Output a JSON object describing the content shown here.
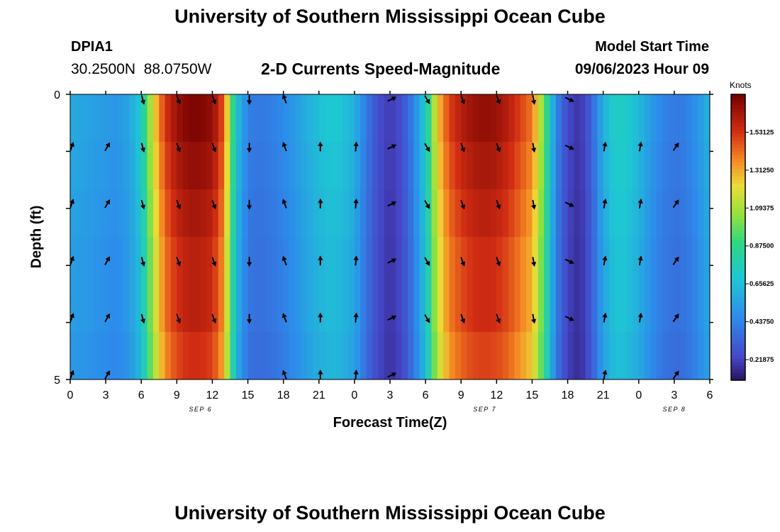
{
  "header": {
    "title": "University of Southern Mississippi Ocean Cube",
    "station": "DPIA1",
    "coords": "30.2500N  88.0750W",
    "subtitle": "2-D Currents Speed-Magnitude",
    "model_start_label": "Model Start Time",
    "model_start_value": "09/06/2023 Hour 09"
  },
  "footer": {
    "title": "University of Southern Mississippi Ocean Cube"
  },
  "chart_data": {
    "type": "heatmap",
    "title": "2-D Currents Speed-Magnitude",
    "xlabel": "Forecast Time(Z)",
    "ylabel": "Depth (ft)",
    "y_ticks": [
      "0",
      "5"
    ],
    "ylim": [
      0,
      5
    ],
    "xlim_hours": [
      0,
      54
    ],
    "x_tick_labels": [
      "0",
      "3",
      "6",
      "9",
      "12",
      "15",
      "18",
      "21",
      "0",
      "3",
      "6",
      "9",
      "12",
      "15",
      "18",
      "21",
      "0",
      "3",
      "6"
    ],
    "date_labels": [
      {
        "text": "SEP 6",
        "hour": 11
      },
      {
        "text": "SEP 7",
        "hour": 35
      },
      {
        "text": "SEP 8",
        "hour": 51
      }
    ],
    "colorbar": {
      "unit": "Knots",
      "min": 0.1,
      "max": 1.75,
      "tick_labels": [
        "1.53125",
        "1.31250",
        "1.09375",
        "0.87500",
        "0.65625",
        "0.43750",
        "0.21875"
      ],
      "tick_values": [
        1.53125,
        1.3125,
        1.09375,
        0.875,
        0.65625,
        0.4375,
        0.21875
      ]
    },
    "speed_profile": {
      "hours": [
        0,
        1,
        2,
        3,
        4,
        5,
        6,
        7,
        8,
        9,
        10,
        11,
        12,
        13,
        14,
        15,
        16,
        17,
        18,
        19,
        20,
        21,
        22,
        23,
        24,
        25,
        26,
        27,
        28,
        29,
        30,
        31,
        32,
        33,
        34,
        35,
        36,
        37,
        38,
        39,
        40,
        41,
        42,
        43,
        44,
        45,
        46,
        47,
        48,
        49,
        50,
        51,
        52,
        53,
        54
      ],
      "knots": [
        0.58,
        0.56,
        0.54,
        0.52,
        0.5,
        0.56,
        0.72,
        1.2,
        1.52,
        1.66,
        1.72,
        1.72,
        1.68,
        1.45,
        0.68,
        0.42,
        0.4,
        0.42,
        0.46,
        0.52,
        0.6,
        0.66,
        0.7,
        0.68,
        0.6,
        0.4,
        0.26,
        0.2,
        0.26,
        0.44,
        0.72,
        1.25,
        1.5,
        1.6,
        1.66,
        1.68,
        1.66,
        1.6,
        1.5,
        1.4,
        1.0,
        0.45,
        0.24,
        0.18,
        0.32,
        0.6,
        0.74,
        0.72,
        0.64,
        0.52,
        0.44,
        0.4,
        0.42,
        0.5,
        0.62
      ]
    },
    "depth_levels": [
      0,
      1,
      2,
      3,
      4,
      5
    ],
    "arrow_times_hours": [
      0,
      3,
      6,
      9,
      12,
      15,
      18,
      21,
      24,
      27,
      30,
      33,
      36,
      39,
      42,
      45,
      48,
      51
    ],
    "arrow_direction_deg": [
      20,
      30,
      165,
      160,
      160,
      180,
      340,
      0,
      5,
      65,
      150,
      160,
      160,
      170,
      115,
      10,
      10,
      35
    ],
    "missing_arrows": [
      {
        "hour": 0,
        "depth": 0
      },
      {
        "hour": 3,
        "depth": 0
      },
      {
        "hour": 21,
        "depth": 0
      },
      {
        "hour": 24,
        "depth": 0
      },
      {
        "hour": 45,
        "depth": 0
      },
      {
        "hour": 48,
        "depth": 0
      },
      {
        "hour": 51,
        "depth": 0
      },
      {
        "hour": 6,
        "depth": 5
      },
      {
        "hour": 9,
        "depth": 5
      },
      {
        "hour": 12,
        "depth": 5
      },
      {
        "hour": 15,
        "depth": 5
      },
      {
        "hour": 30,
        "depth": 5
      },
      {
        "hour": 33,
        "depth": 5
      },
      {
        "hour": 36,
        "depth": 5
      },
      {
        "hour": 39,
        "depth": 5
      },
      {
        "hour": 42,
        "depth": 5
      },
      {
        "hour": 48,
        "depth": 5
      }
    ]
  }
}
